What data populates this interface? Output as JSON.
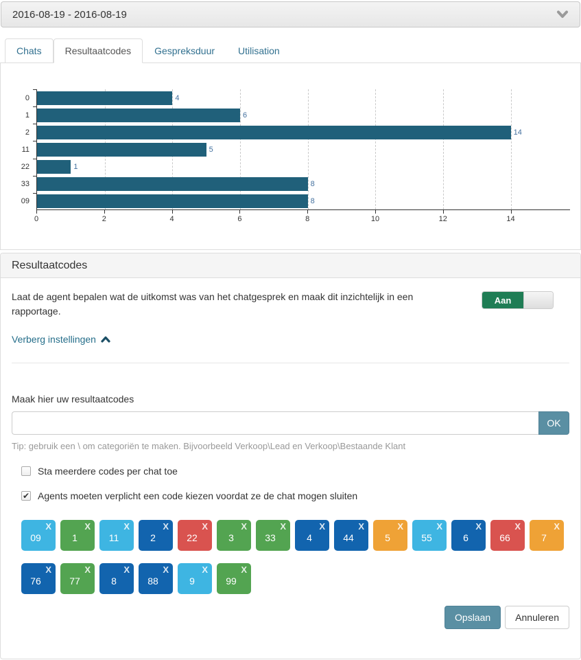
{
  "header": {
    "date_range": "2016-08-19 - 2016-08-19"
  },
  "tabs": [
    {
      "label": "Chats",
      "active": false
    },
    {
      "label": "Resultaatcodes",
      "active": true
    },
    {
      "label": "Gespreksduur",
      "active": false
    },
    {
      "label": "Utilisation",
      "active": false
    }
  ],
  "chart_data": {
    "type": "bar",
    "orientation": "horizontal",
    "categories": [
      "0",
      "1",
      "2",
      "11",
      "22",
      "33",
      "09"
    ],
    "values": [
      4,
      6,
      14,
      5,
      1,
      8,
      8
    ],
    "xlim": [
      0,
      15.75
    ],
    "xticks": [
      0,
      2,
      4,
      6,
      8,
      10,
      12,
      14
    ],
    "grid": "vertical-dashed",
    "bar_color": "#20607a",
    "value_label_color": "#44719f",
    "title": "",
    "xlabel": "",
    "ylabel": ""
  },
  "settings_panel": {
    "title": "Resultaatcodes",
    "description": "Laat de agent bepalen wat de uitkomst was van het chatgesprek en maak dit inzichtelijk in een rapportage.",
    "toggle": {
      "label": "Aan",
      "state": "on",
      "color": "#1f7d55"
    },
    "hide_settings_link": "Verberg instellingen",
    "codes_label": "Maak hier uw resultaatcodes",
    "input": {
      "value": "",
      "placeholder": ""
    },
    "ok_button": "OK",
    "tip": "Tip: gebruik een \\ om categoriën te maken. Bijvoorbeeld Verkoop\\Lead en Verkoop\\Bestaande Klant",
    "checkboxes": [
      {
        "label": "Sta meerdere codes per chat toe",
        "checked": false
      },
      {
        "label": "Agents moeten verplicht een code kiezen voordat ze de chat mogen sluiten",
        "checked": true
      }
    ],
    "codes": [
      {
        "value": "09",
        "color": "#3eb5e2"
      },
      {
        "value": "1",
        "color": "#53a451"
      },
      {
        "value": "11",
        "color": "#3eb5e2"
      },
      {
        "value": "2",
        "color": "#1264ae"
      },
      {
        "value": "22",
        "color": "#d9534f"
      },
      {
        "value": "3",
        "color": "#53a451"
      },
      {
        "value": "33",
        "color": "#53a451"
      },
      {
        "value": "4",
        "color": "#1264ae"
      },
      {
        "value": "44",
        "color": "#1264ae"
      },
      {
        "value": "5",
        "color": "#efa236"
      },
      {
        "value": "55",
        "color": "#3eb5e2"
      },
      {
        "value": "6",
        "color": "#1264ae"
      },
      {
        "value": "66",
        "color": "#d9534f"
      },
      {
        "value": "7",
        "color": "#efa236"
      },
      {
        "value": "76",
        "color": "#1264ae"
      },
      {
        "value": "77",
        "color": "#53a451"
      },
      {
        "value": "8",
        "color": "#1264ae"
      },
      {
        "value": "88",
        "color": "#1264ae"
      },
      {
        "value": "9",
        "color": "#3eb5e2"
      },
      {
        "value": "99",
        "color": "#53a451"
      }
    ],
    "save_button": "Opslaan",
    "cancel_button": "Annuleren"
  }
}
